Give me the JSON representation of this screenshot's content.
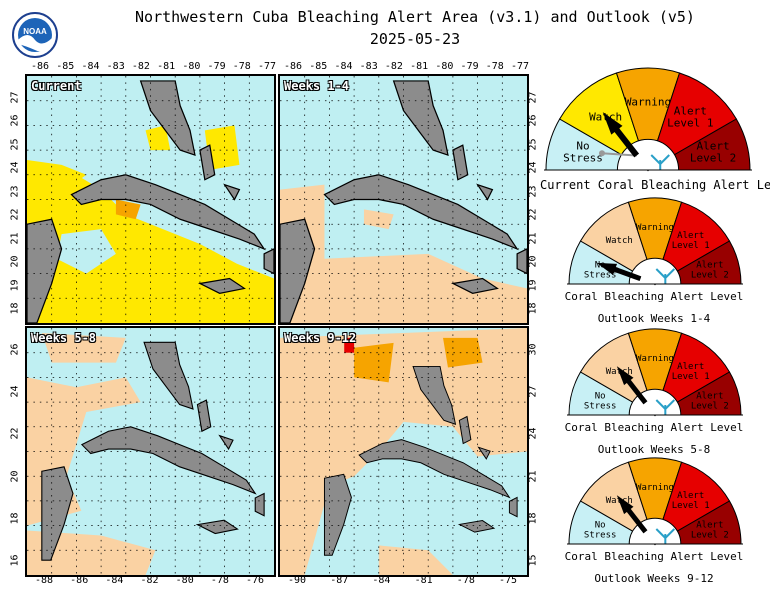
{
  "title": "Northwestern Cuba Bleaching Alert Area (v3.1) and Outlook (v5)",
  "date": "2025-05-23",
  "logo_text": "NOAA",
  "colors": {
    "no_stress": "#c8f0f5",
    "watch": "#ffe800",
    "watch_light": "#fad2a3",
    "warning": "#f6a400",
    "alert1": "#e60000",
    "alert2": "#980000",
    "land": "#8c8c8c",
    "ocean": "#bfeff2"
  },
  "panels": [
    {
      "label": "Current",
      "top_ticks": [
        "-86",
        "-85",
        "-84",
        "-83",
        "-82",
        "-81",
        "-80",
        "-79",
        "-78",
        "-77"
      ],
      "left_ticks": [
        "27",
        "26",
        "25",
        "24",
        "23",
        "22",
        "21",
        "20",
        "19",
        "18"
      ],
      "right_ticks": [],
      "bottom_ticks": []
    },
    {
      "label": "Weeks 1-4",
      "top_ticks": [
        "-86",
        "-85",
        "-84",
        "-83",
        "-82",
        "-81",
        "-80",
        "-79",
        "-78",
        "-77"
      ],
      "left_ticks": [],
      "right_ticks": [
        "27",
        "26",
        "25",
        "24",
        "23",
        "22",
        "21",
        "20",
        "19",
        "18"
      ],
      "bottom_ticks": []
    },
    {
      "label": "Weeks 5-8",
      "top_ticks": [],
      "left_ticks": [
        "26",
        "24",
        "22",
        "20",
        "18",
        "16"
      ],
      "right_ticks": [],
      "bottom_ticks": [
        "-88",
        "-86",
        "-84",
        "-82",
        "-80",
        "-78",
        "-76"
      ]
    },
    {
      "label": "Weeks 9-12",
      "top_ticks": [],
      "left_ticks": [],
      "right_ticks": [
        "30",
        "27",
        "24",
        "21",
        "18",
        "15"
      ],
      "bottom_ticks": [
        "-90",
        "-87",
        "-84",
        "-81",
        "-78",
        "-75"
      ]
    }
  ],
  "gauges": [
    {
      "caption1": "Current Coral Bleaching Alert Level",
      "caption2": "",
      "level": "watch"
    },
    {
      "caption1": "Coral Bleaching Alert Level",
      "caption2": "Outlook Weeks 1-4",
      "level": "no_stress"
    },
    {
      "caption1": "Coral Bleaching Alert Level",
      "caption2": "Outlook Weeks 5-8",
      "level": "watch"
    },
    {
      "caption1": "Coral Bleaching Alert Level",
      "caption2": "Outlook Weeks 9-12",
      "level": "watch"
    }
  ],
  "gauge_labels": {
    "no_stress": [
      "No",
      "Stress"
    ],
    "watch": [
      "Watch"
    ],
    "warning": [
      "Warning"
    ],
    "alert1": [
      "Alert",
      "Level 1"
    ],
    "alert2": [
      "Alert",
      "Level 2"
    ]
  }
}
